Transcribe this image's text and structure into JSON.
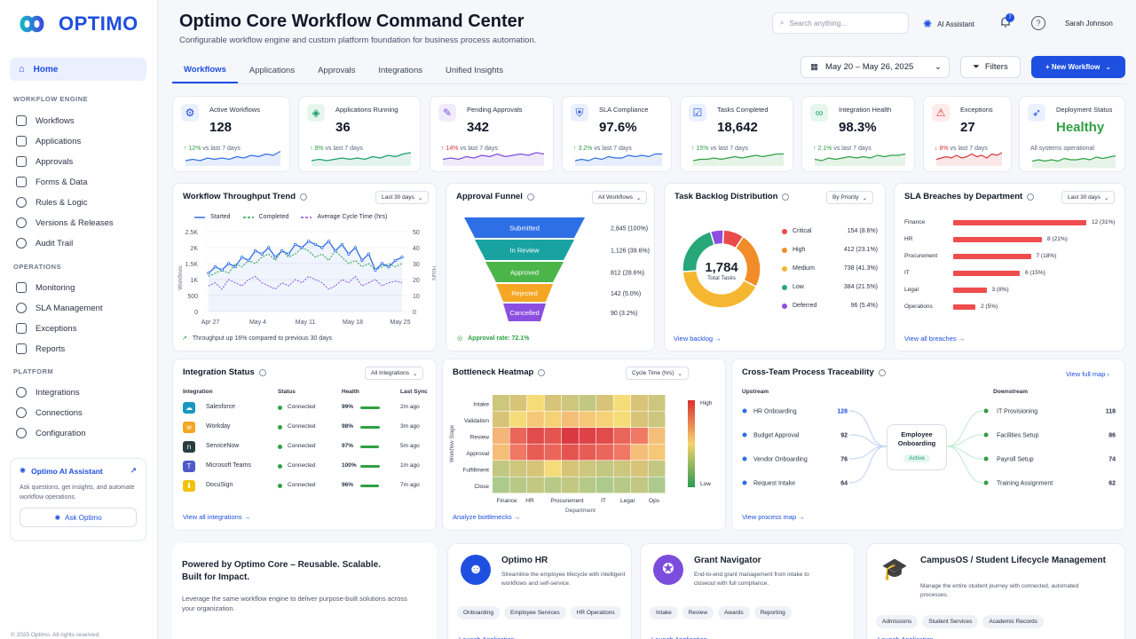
{
  "brand": {
    "name": "OPTIMO"
  },
  "sidebar": {
    "home": "Home",
    "sections": [
      {
        "title": "WORKFLOW ENGINE",
        "items": [
          "Workflows",
          "Applications",
          "Approvals",
          "Forms & Data",
          "Rules & Logic",
          "Versions & Releases",
          "Audit Trail"
        ]
      },
      {
        "title": "OPERATIONS",
        "items": [
          "Monitoring",
          "SLA Management",
          "Exceptions",
          "Reports"
        ]
      },
      {
        "title": "PLATFORM",
        "items": [
          "Integrations",
          "Connections",
          "Configuration"
        ]
      }
    ],
    "assistant": {
      "title": "Optimo AI Assistant",
      "desc": "Ask questions, get insights, and automate workflow operations.",
      "button": "Ask Optimo"
    },
    "copyright": "© 2025 Optimo. All rights reserved."
  },
  "header": {
    "title": "Optimo Core Workflow Command Center",
    "subtitle": "Configurable workflow engine and custom platform foundation for business process automation.",
    "search_placeholder": "Search anything...",
    "ai_assistant": "AI Assistant",
    "notifications": "7",
    "user": "Sarah Johnson"
  },
  "tabs": [
    "Workflows",
    "Applications",
    "Approvals",
    "Integrations",
    "Unified Insights"
  ],
  "toolbar": {
    "date_range": "May 20 – May 26, 2025",
    "filters": "Filters",
    "new_workflow": "+ New Workflow"
  },
  "kpis": [
    {
      "label": "Active Workflows",
      "value": "128",
      "delta": "↑ 12%",
      "note": "vs last 7 days",
      "color": "#2ea043",
      "icon": "workflow-icon",
      "glyph": "⚙",
      "tint": "#eaf0fd",
      "fg": "#1e4fe0"
    },
    {
      "label": "Applications Running",
      "value": "36",
      "delta": "↑ 9%",
      "note": "vs last 7 days",
      "color": "#2ea043",
      "icon": "cube-icon",
      "glyph": "◈",
      "tint": "#e6f6ef",
      "fg": "#1a9e6a"
    },
    {
      "label": "Pending Approvals",
      "value": "342",
      "delta": "↑ 14%",
      "note": "vs last 7 days",
      "color": "#d93636",
      "icon": "approval-icon",
      "glyph": "✎",
      "tint": "#f1ecfd",
      "fg": "#7c4ddc"
    },
    {
      "label": "SLA Compliance",
      "value": "97.6%",
      "delta": "↑ 3.2%",
      "note": "vs last 7 days",
      "color": "#2ea043",
      "icon": "shield-icon",
      "glyph": "⛨",
      "tint": "#eaf0fd",
      "fg": "#1e4fe0"
    },
    {
      "label": "Tasks Completed",
      "value": "18,642",
      "delta": "↑ 15%",
      "note": "vs last 7 days",
      "color": "#2ea043",
      "icon": "clipboard-icon",
      "glyph": "☑",
      "tint": "#eaf0fd",
      "fg": "#1e4fe0"
    },
    {
      "label": "Integration Health",
      "value": "98.3%",
      "delta": "↑ 2.1%",
      "note": "vs last 7 days",
      "color": "#2ea043",
      "icon": "link-icon",
      "glyph": "∞",
      "tint": "#e6f6ef",
      "fg": "#1a9e6a"
    },
    {
      "label": "Exceptions",
      "value": "27",
      "delta": "↓ 8%",
      "note": "vs last 7 days",
      "color": "#d93636",
      "icon": "warning-icon",
      "glyph": "⚠",
      "tint": "#fdeceb",
      "fg": "#d93636"
    },
    {
      "label": "Deployment Status",
      "value": "Healthy",
      "delta": "",
      "note": "All systems operational",
      "color": "#2ea043",
      "icon": "rocket-icon",
      "glyph": "➶",
      "tint": "#eaf0fd",
      "fg": "#1e4fe0"
    }
  ],
  "throughput": {
    "title": "Workflow Throughput Trend",
    "select": "Last 30 days",
    "legend": [
      "Started",
      "Completed",
      "Average Cycle Time (hrs)"
    ],
    "y_ticks": [
      "2.5K",
      "2K",
      "1.5K",
      "1K",
      "500",
      "0"
    ],
    "y2_ticks": [
      "50",
      "40",
      "30",
      "20",
      "10",
      "0"
    ],
    "x_ticks": [
      "Apr 27",
      "May 4",
      "May 11",
      "May 18",
      "May 25"
    ],
    "ylabel": "Workflows",
    "y2label": "Hours",
    "note": "Throughput up 16% compared to previous 30 days"
  },
  "funnel": {
    "title": "Approval Funnel",
    "select": "All Workflows",
    "stages": [
      {
        "label": "Submitted",
        "value": "2,845 (100%)",
        "color": "#2f6fe6"
      },
      {
        "label": "In Review",
        "value": "1,126 (39.6%)",
        "color": "#18a2a0"
      },
      {
        "label": "Approved",
        "value": "812 (28.6%)",
        "color": "#4bb54a"
      },
      {
        "label": "Rejected",
        "value": "142 (5.0%)",
        "color": "#f5a623"
      },
      {
        "label": "Cancelled",
        "value": "90 (3.2%)",
        "color": "#8a4fe0"
      }
    ],
    "rate": "Approval rate: 72.1%"
  },
  "backlog": {
    "title": "Task Backlog Distribution",
    "select": "By Priority",
    "total": "1,784",
    "total_label": "Total Tasks",
    "items": [
      {
        "label": "Critical",
        "value": "154 (8.6%)",
        "color": "#e94b4b"
      },
      {
        "label": "High",
        "value": "412 (23.1%)",
        "color": "#f28c28"
      },
      {
        "label": "Medium",
        "value": "738 (41.3%)",
        "color": "#f5b731"
      },
      {
        "label": "Low",
        "value": "384 (21.5%)",
        "color": "#27a67a"
      },
      {
        "label": "Deferred",
        "value": "96 (5.4%)",
        "color": "#8a4fe0"
      }
    ],
    "link": "View backlog  →"
  },
  "sla": {
    "title": "SLA Breaches by Department",
    "select": "Last 30 days",
    "rows": [
      {
        "label": "Finance",
        "value": "12 (31%)",
        "n": 12
      },
      {
        "label": "HR",
        "value": "8 (21%)",
        "n": 8
      },
      {
        "label": "Procurement",
        "value": "7 (18%)",
        "n": 7
      },
      {
        "label": "IT",
        "value": "6 (15%)",
        "n": 6
      },
      {
        "label": "Legal",
        "value": "3 (8%)",
        "n": 3
      },
      {
        "label": "Operations",
        "value": "2 (5%)",
        "n": 2
      }
    ],
    "link": "View all breaches  →"
  },
  "integration": {
    "title": "Integration Status",
    "select": "All Integrations",
    "cols": [
      "Integration",
      "Status",
      "Health",
      "Last Sync"
    ],
    "rows": [
      {
        "name": "Salesforce",
        "status": "Connected",
        "health": "99%",
        "h": 0.99,
        "sync": "2m ago",
        "color": "#1798c1",
        "glyph": "☁"
      },
      {
        "name": "Workday",
        "status": "Connected",
        "health": "98%",
        "h": 0.98,
        "sync": "3m ago",
        "color": "#f5a623",
        "glyph": "w"
      },
      {
        "name": "ServiceNow",
        "status": "Connected",
        "health": "97%",
        "h": 0.97,
        "sync": "5m ago",
        "color": "#293e40",
        "glyph": "n"
      },
      {
        "name": "Microsoft Teams",
        "status": "Connected",
        "health": "100%",
        "h": 1.0,
        "sync": "1m ago",
        "color": "#5059c9",
        "glyph": "T"
      },
      {
        "name": "DocuSign",
        "status": "Connected",
        "health": "96%",
        "h": 0.96,
        "sync": "7m ago",
        "color": "#f2c20a",
        "glyph": "⬇"
      }
    ],
    "link": "View all integrations  →"
  },
  "heatmap": {
    "title": "Bottleneck Heatmap",
    "select": "Cycle Time (hrs)",
    "rows": [
      "Intake",
      "Validation",
      "Review",
      "Approval",
      "Fulfillment",
      "Close"
    ],
    "cols": [
      "Finance",
      "HR",
      "Procurement",
      "IT",
      "Legal",
      "Ops"
    ],
    "ylabel": "Workflow Stage",
    "xlabel": "Department",
    "high": "High",
    "low": "Low",
    "link": "Analyze bottlenecks  →"
  },
  "traceability": {
    "title": "Cross-Team Process Traceability",
    "link_top": "View full map  ›",
    "upstream_title": "Upstream",
    "downstream_title": "Downstream",
    "upstream": [
      {
        "label": "HR Onboarding",
        "value": "128"
      },
      {
        "label": "Budget Approval",
        "value": "92"
      },
      {
        "label": "Vendor Onboarding",
        "value": "76"
      },
      {
        "label": "Request Intake",
        "value": "64"
      }
    ],
    "downstream": [
      {
        "label": "IT Provisioning",
        "value": "118"
      },
      {
        "label": "Facilities Setup",
        "value": "86"
      },
      {
        "label": "Payroll Setup",
        "value": "74"
      },
      {
        "label": "Training Assignment",
        "value": "62"
      }
    ],
    "center": "Employee Onboarding",
    "center_status": "Active",
    "link": "View process map  →"
  },
  "promo": {
    "headline": "Powered by Optimo Core – Reusable. Scalable. Built for Impact.",
    "body": "Leverage the same workflow engine to deliver purpose-built solutions across your organization.",
    "apps": [
      {
        "name": "Optimo HR",
        "desc": "Streamline the employee lifecycle with intelligent workflows and self-service.",
        "chips": [
          "Onboarding",
          "Employee Services",
          "HR Operations"
        ],
        "color": "#1e4fe0",
        "icon": "people-icon"
      },
      {
        "name": "Grant Navigator",
        "desc": "End-to-end grant management from intake to closeout with full compliance.",
        "chips": [
          "Intake",
          "Review",
          "Awards",
          "Reporting"
        ],
        "color": "#7c4ddc",
        "icon": "compass-icon"
      },
      {
        "name": "CampusOS / Student Lifecycle Management",
        "desc": "Manage the entire student journey with connected, automated processes.",
        "chips": [
          "Admissions",
          "Student Services",
          "Academic Records"
        ],
        "color": "#1a9e6a",
        "icon": "graduation-cap-icon"
      }
    ],
    "launch": "Launch Application  →"
  }
}
